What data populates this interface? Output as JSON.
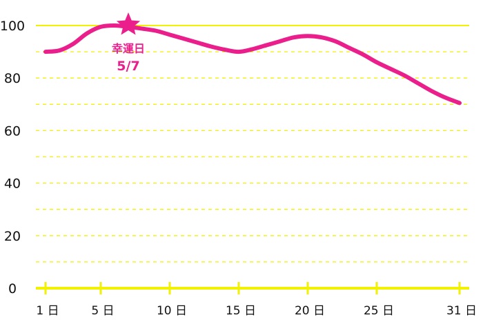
{
  "chart_data": {
    "type": "line",
    "x_categories": [
      "1 日",
      "5 日",
      "10 日",
      "15 日",
      "20 日",
      "25 日",
      "31 日"
    ],
    "x_tick_days": [
      1,
      5,
      10,
      15,
      20,
      25,
      31
    ],
    "y_ticks": [
      "0",
      "20",
      "40",
      "60",
      "80",
      "100"
    ],
    "ylim": [
      0,
      100
    ],
    "xlim": [
      1,
      31
    ],
    "grid": "dashed horizontal every 10",
    "series": [
      {
        "x": [
          1,
          2,
          3,
          4,
          5,
          6,
          7,
          8,
          9,
          10,
          11,
          12,
          13,
          14,
          15,
          16,
          17,
          18,
          19,
          20,
          21,
          22,
          23,
          24,
          25,
          26,
          27,
          28,
          29,
          30,
          31
        ],
        "y": [
          90,
          90.5,
          93,
          97,
          99.5,
          100,
          99.5,
          98.8,
          98,
          96.5,
          95,
          93.5,
          92,
          90.8,
          90,
          91,
          92.5,
          94,
          95.5,
          96,
          95.5,
          94,
          91.5,
          89,
          86,
          83.5,
          81,
          78,
          75,
          72.5,
          70.5
        ],
        "color": "#ea1f8c"
      }
    ],
    "annotation": {
      "label": "幸運日",
      "date": "5/7",
      "x": 7,
      "y": 100,
      "marker": "star-icon"
    },
    "colors": {
      "line": "#ea1f8c",
      "axis": "#f2f200",
      "grid": "#f2f200"
    }
  }
}
